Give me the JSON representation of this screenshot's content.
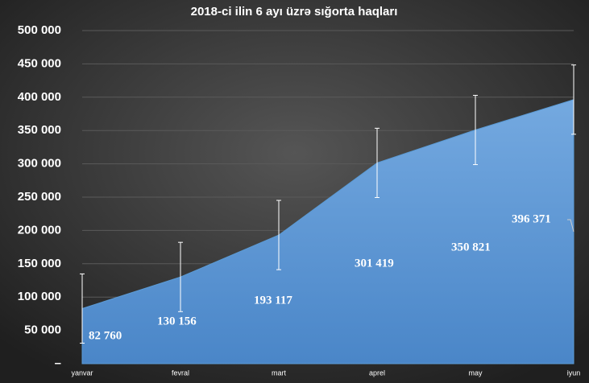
{
  "chart_data": {
    "type": "area",
    "title": "2018-ci ilin 6 ayı üzrə sığorta haqları",
    "categories": [
      "yanvar",
      "fevral",
      "mart",
      "aprel",
      "may",
      "iyun"
    ],
    "values": [
      82760,
      130156,
      193117,
      301419,
      350821,
      396371
    ],
    "value_labels": [
      "82 760",
      "130 156",
      "193 117",
      "301 419",
      "350 821",
      "396 371"
    ],
    "errors": [
      52000,
      52000,
      52000,
      52000,
      52000,
      52000
    ],
    "color": "#5b9bd5",
    "ylim": [
      0,
      500000
    ],
    "yticks": [
      {
        "value": 0,
        "label": "–"
      },
      {
        "value": 50000,
        "label": "50 000"
      },
      {
        "value": 100000,
        "label": "100 000"
      },
      {
        "value": 150000,
        "label": "150 000"
      },
      {
        "value": 200000,
        "label": "200 000"
      },
      {
        "value": 250000,
        "label": "250 000"
      },
      {
        "value": 300000,
        "label": "300 000"
      },
      {
        "value": 350000,
        "label": "350 000"
      },
      {
        "value": 400000,
        "label": "400 000"
      },
      {
        "value": 450000,
        "label": "450 000"
      },
      {
        "value": 500000,
        "label": "500 000"
      }
    ],
    "grid": true
  }
}
